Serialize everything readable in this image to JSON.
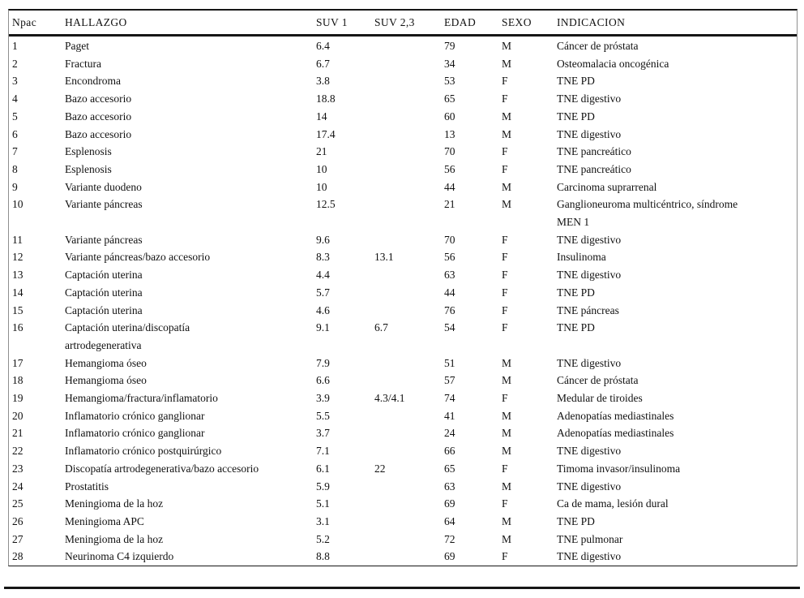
{
  "colors": {
    "rule": "#161616",
    "side_rule": "#8f8f8f",
    "background": "#ffffff",
    "text": "#111111"
  },
  "table": {
    "columns": [
      "Npac",
      "HALLAZGO",
      "SUV 1",
      "SUV 2,3",
      "EDAD",
      "SEXO",
      "INDICACION"
    ],
    "field_names": [
      "npac",
      "hallazgo",
      "suv1",
      "suv23",
      "edad",
      "sexo",
      "indicacion"
    ],
    "rows": [
      [
        "1",
        "Paget",
        "6.4",
        "",
        "79",
        "M",
        "Cáncer de próstata"
      ],
      [
        "2",
        "Fractura",
        "6.7",
        "",
        "34",
        "M",
        "Osteomalacia oncogénica"
      ],
      [
        "3",
        "Encondroma",
        "3.8",
        "",
        "53",
        "F",
        "TNE PD"
      ],
      [
        "4",
        "Bazo accesorio",
        "18.8",
        "",
        "65",
        "F",
        "TNE digestivo"
      ],
      [
        "5",
        "Bazo accesorio",
        "14",
        "",
        "60",
        "M",
        "TNE PD"
      ],
      [
        "6",
        "Bazo accesorio",
        "17.4",
        "",
        "13",
        "M",
        "TNE digestivo"
      ],
      [
        "7",
        "Esplenosis",
        "21",
        "",
        "70",
        "F",
        "TNE pancreático"
      ],
      [
        "8",
        "Esplenosis",
        "10",
        "",
        "56",
        "F",
        "TNE pancreático"
      ],
      [
        "9",
        "Variante duodeno",
        "10",
        "",
        "44",
        "M",
        "Carcinoma suprarrenal"
      ],
      [
        "10",
        "Variante páncreas",
        "12.5",
        "",
        "21",
        "M",
        "Ganglioneuroma multicéntrico, síndrome MEN 1"
      ],
      [
        "11",
        "Variante páncreas",
        "9.6",
        "",
        "70",
        "F",
        "TNE digestivo"
      ],
      [
        "12",
        "Variante páncreas/bazo accesorio",
        "8.3",
        "13.1",
        "56",
        "F",
        "Insulinoma"
      ],
      [
        "13",
        "Captación uterina",
        "4.4",
        "",
        "63",
        "F",
        "TNE digestivo"
      ],
      [
        "14",
        "Captación uterina",
        "5.7",
        "",
        "44",
        "F",
        "TNE PD"
      ],
      [
        "15",
        "Captación uterina",
        "4.6",
        "",
        "76",
        "F",
        "TNE páncreas"
      ],
      [
        "16",
        "Captación uterina/discopatía artrodegenerativa",
        "9.1",
        "6.7",
        "54",
        "F",
        "TNE PD"
      ],
      [
        "17",
        "Hemangioma óseo",
        "7.9",
        "",
        "51",
        "M",
        "TNE digestivo"
      ],
      [
        "18",
        "Hemangioma óseo",
        "6.6",
        "",
        "57",
        "M",
        "Cáncer de próstata"
      ],
      [
        "19",
        "Hemangioma/fractura/inflamatorio",
        "3.9",
        "4.3/4.1",
        "74",
        "F",
        "Medular de tiroides"
      ],
      [
        "20",
        "Inflamatorio crónico ganglionar",
        "5.5",
        "",
        "41",
        "M",
        "Adenopatías mediastinales"
      ],
      [
        "21",
        "Inflamatorio crónico ganglionar",
        "3.7",
        "",
        "24",
        "M",
        "Adenopatías mediastinales"
      ],
      [
        "22",
        "Inflamatorio crónico postquirúrgico",
        "7.1",
        "",
        "66",
        "M",
        "TNE digestivo"
      ],
      [
        "23",
        "Discopatía artrodegenerativa/bazo accesorio",
        "6.1",
        "22",
        "65",
        "F",
        "Timoma invasor/insulinoma"
      ],
      [
        "24",
        "Prostatitis",
        "5.9",
        "",
        "63",
        "M",
        "TNE digestivo"
      ],
      [
        "25",
        "Meningioma de la hoz",
        "5.1",
        "",
        "69",
        "F",
        "Ca de mama, lesión dural"
      ],
      [
        "26",
        "Meningioma APC",
        "3.1",
        "",
        "64",
        "M",
        "TNE PD"
      ],
      [
        "27",
        "Meningioma de la hoz",
        "5.2",
        "",
        "72",
        "M",
        "TNE pulmonar"
      ],
      [
        "28",
        "Neurinoma C4 izquierdo",
        "8.8",
        "",
        "69",
        "F",
        "TNE digestivo"
      ]
    ]
  }
}
